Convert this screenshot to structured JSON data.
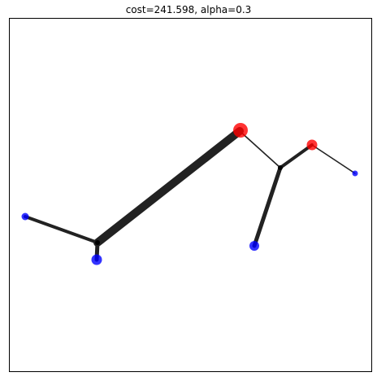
{
  "figure": {
    "title": "cost=241.598, alpha=0.3"
  },
  "graph": {
    "nodes": [
      {
        "id": "source-large",
        "kind": "source",
        "color": "#ff0000",
        "size": "large"
      },
      {
        "id": "source-small",
        "kind": "source",
        "color": "#ff0000",
        "size": "medium"
      },
      {
        "id": "sink-left",
        "kind": "sink",
        "color": "#0000ff",
        "size": "small"
      },
      {
        "id": "sink-bottom-left",
        "kind": "sink",
        "color": "#0000ff",
        "size": "medium"
      },
      {
        "id": "sink-bottom-mid",
        "kind": "sink",
        "color": "#0000ff",
        "size": "medium"
      },
      {
        "id": "sink-right",
        "kind": "sink",
        "color": "#0000ff",
        "size": "small"
      },
      {
        "id": "steiner-left",
        "kind": "steiner",
        "color": "#000000",
        "size": "tiny"
      },
      {
        "id": "steiner-right",
        "kind": "steiner",
        "color": "#000000",
        "size": "tiny"
      }
    ],
    "edges": [
      {
        "from": "source-large",
        "to": "steiner-left",
        "weight": "heavy"
      },
      {
        "from": "steiner-left",
        "to": "sink-left",
        "weight": "medium"
      },
      {
        "from": "steiner-left",
        "to": "sink-bottom-left",
        "weight": "medium"
      },
      {
        "from": "source-large",
        "to": "steiner-right",
        "weight": "thin"
      },
      {
        "from": "source-small",
        "to": "steiner-right",
        "weight": "medium"
      },
      {
        "from": "steiner-right",
        "to": "sink-bottom-mid",
        "weight": "medium"
      },
      {
        "from": "source-small",
        "to": "sink-right",
        "weight": "thin"
      }
    ]
  }
}
